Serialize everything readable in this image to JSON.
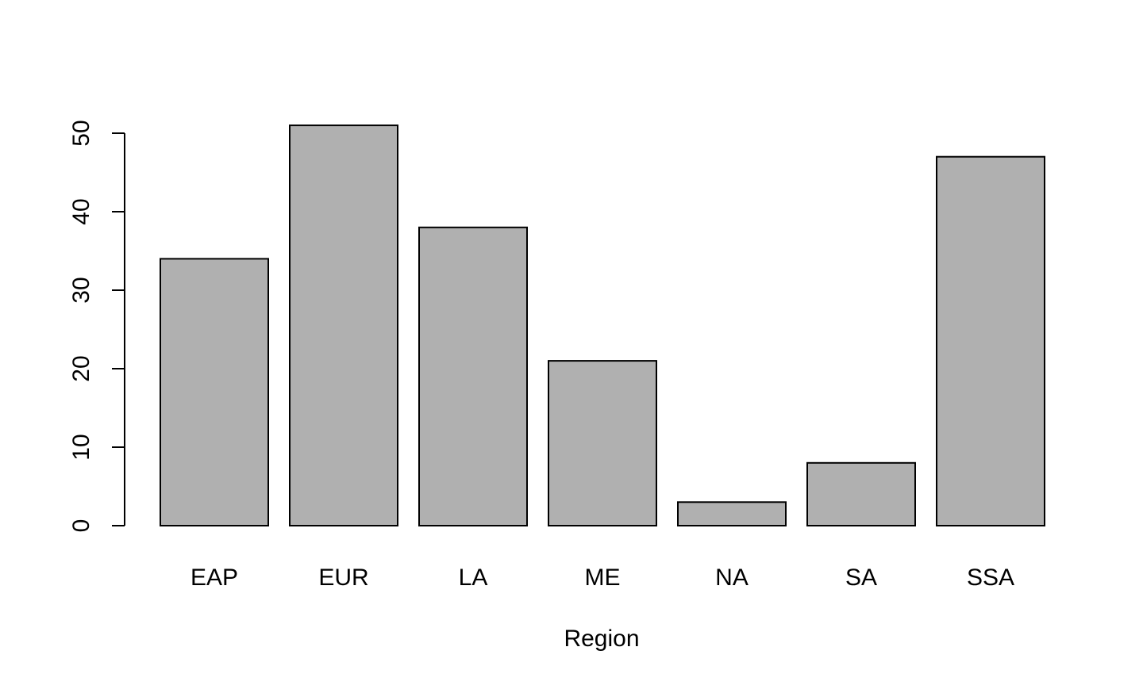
{
  "chart_data": {
    "type": "bar",
    "title": "",
    "xlabel": "Region",
    "ylabel": "",
    "categories": [
      "EAP",
      "EUR",
      "LA",
      "ME",
      "NA",
      "SA",
      "SSA"
    ],
    "values": [
      34,
      51,
      38,
      21,
      3,
      8,
      47
    ],
    "ylim": [
      0,
      50
    ],
    "yticks": [
      0,
      10,
      20,
      30,
      40,
      50
    ],
    "grid": false,
    "legend": "none",
    "bar_fill": "#b0b0b0",
    "bar_stroke": "#000000"
  }
}
